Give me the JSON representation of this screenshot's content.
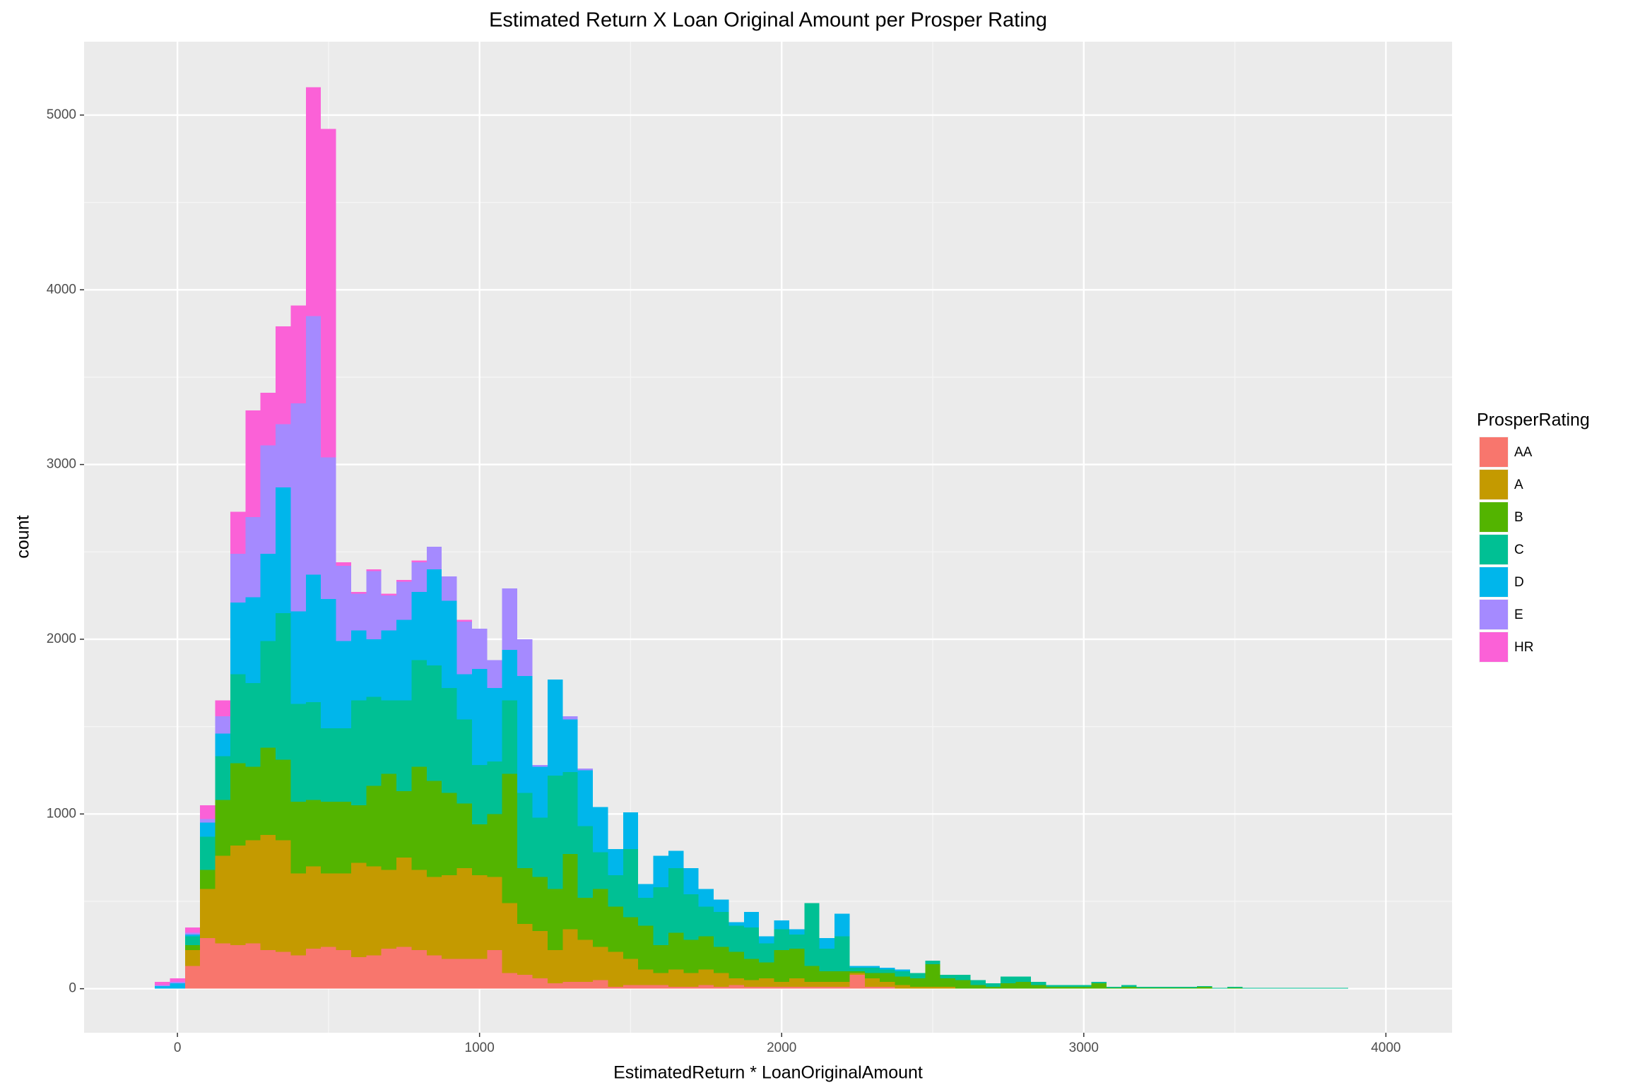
{
  "chart_data": {
    "type": "histogram",
    "title": "Estimated Return X Loan Original Amount per Prosper Rating",
    "x_label": "EstimatedReturn * LoanOriginalAmount",
    "y_label": "count",
    "legend_title": "ProsperRating",
    "legend": "right",
    "grid": true,
    "stacked": true,
    "bins": [
      -75,
      -25,
      25,
      75,
      125,
      175,
      225,
      275,
      325,
      375,
      425,
      475,
      525,
      575,
      625,
      675,
      725,
      775,
      825,
      875,
      925,
      975,
      1025,
      1075,
      1125,
      1175,
      1225,
      1275,
      1325,
      1375,
      1425,
      1475,
      1525,
      1575,
      1625,
      1675,
      1725,
      1775,
      1825,
      1875,
      1925,
      1975,
      2025,
      2075,
      2125,
      2175,
      2225,
      2275,
      2325,
      2375,
      2425,
      2475,
      2525,
      2575,
      2625,
      2675,
      2725,
      2775,
      2825,
      2875,
      2925,
      2975,
      3025,
      3075,
      3125,
      3175,
      3225,
      3275,
      3325,
      3375,
      3425,
      3475,
      3525,
      3575,
      3625,
      3675,
      3725,
      3775,
      3825,
      3875
    ],
    "series": [
      {
        "name": "AA",
        "color": "#F8766D",
        "values": [
          0,
          0,
          130,
          290,
          260,
          250,
          260,
          220,
          210,
          190,
          230,
          240,
          220,
          180,
          190,
          230,
          240,
          220,
          190,
          170,
          170,
          170,
          220,
          90,
          80,
          60,
          30,
          40,
          40,
          50,
          10,
          20,
          20,
          20,
          10,
          10,
          20,
          10,
          20,
          10,
          10,
          10,
          10,
          10,
          10,
          10,
          80,
          10,
          10,
          0,
          0,
          0,
          0,
          0,
          0,
          0,
          0,
          0,
          0,
          0,
          0,
          0,
          0,
          0,
          0,
          0,
          0,
          0,
          0,
          0,
          0,
          0,
          0,
          0,
          0,
          0,
          0,
          0,
          0
        ]
      },
      {
        "name": "A",
        "color": "#C49A00",
        "values": [
          0,
          0,
          90,
          280,
          500,
          570,
          590,
          660,
          640,
          470,
          470,
          420,
          440,
          540,
          510,
          450,
          510,
          460,
          450,
          480,
          520,
          480,
          420,
          400,
          290,
          270,
          190,
          300,
          240,
          190,
          200,
          150,
          90,
          70,
          100,
          80,
          90,
          80,
          40,
          40,
          50,
          30,
          50,
          30,
          30,
          30,
          10,
          50,
          30,
          20,
          10,
          10,
          10,
          0,
          0,
          0,
          0,
          0,
          0,
          0,
          0,
          0,
          0,
          0,
          0,
          0,
          0,
          0,
          0,
          0,
          0,
          0,
          0,
          0,
          0,
          0,
          0,
          0,
          0
        ]
      },
      {
        "name": "B",
        "color": "#53B400",
        "values": [
          0,
          0,
          30,
          110,
          320,
          470,
          420,
          500,
          460,
          410,
          380,
          410,
          410,
          330,
          460,
          550,
          380,
          590,
          550,
          470,
          370,
          290,
          360,
          740,
          320,
          310,
          350,
          430,
          240,
          330,
          260,
          240,
          250,
          160,
          210,
          190,
          190,
          150,
          150,
          120,
          90,
          180,
          170,
          90,
          60,
          60,
          10,
          30,
          50,
          50,
          50,
          130,
          50,
          50,
          20,
          10,
          30,
          40,
          20,
          10,
          10,
          10,
          30,
          5,
          10,
          5,
          5,
          5,
          5,
          10,
          0,
          5,
          0,
          0,
          0,
          0,
          0,
          0,
          0
        ]
      },
      {
        "name": "C",
        "color": "#00C094",
        "values": [
          0,
          0,
          50,
          190,
          250,
          510,
          480,
          610,
          840,
          560,
          560,
          420,
          420,
          600,
          510,
          420,
          520,
          610,
          660,
          600,
          480,
          340,
          300,
          420,
          430,
          340,
          650,
          470,
          410,
          210,
          180,
          390,
          160,
          330,
          370,
          260,
          170,
          200,
          150,
          180,
          110,
          120,
          80,
          360,
          130,
          200,
          20,
          30,
          20,
          30,
          30,
          20,
          20,
          30,
          30,
          20,
          40,
          30,
          20,
          10,
          10,
          10,
          10,
          5,
          10,
          5,
          5,
          5,
          5,
          5,
          5,
          5,
          5,
          5,
          5,
          5,
          5,
          5,
          5
        ]
      },
      {
        "name": "D",
        "color": "#00B6EB",
        "values": [
          15,
          30,
          10,
          80,
          130,
          410,
          490,
          500,
          720,
          530,
          730,
          740,
          500,
          400,
          330,
          400,
          460,
          390,
          550,
          500,
          260,
          550,
          420,
          290,
          670,
          290,
          550,
          300,
          320,
          260,
          150,
          210,
          80,
          180,
          100,
          150,
          100,
          70,
          20,
          90,
          40,
          50,
          30,
          0,
          60,
          130,
          10,
          10,
          10,
          10,
          0,
          0,
          0,
          0,
          0,
          0,
          0,
          0,
          0,
          0,
          0,
          0,
          0,
          0,
          0,
          0,
          0,
          0,
          0,
          0,
          0,
          0,
          0,
          0,
          0,
          0,
          0,
          0,
          0
        ]
      },
      {
        "name": "E",
        "color": "#A58AFF",
        "values": [
          5,
          10,
          10,
          20,
          100,
          280,
          460,
          620,
          360,
          1190,
          1480,
          810,
          430,
          210,
          390,
          200,
          220,
          170,
          130,
          140,
          300,
          230,
          160,
          350,
          210,
          10,
          0,
          20,
          10,
          0,
          0,
          0,
          0,
          0,
          0,
          0,
          0,
          0,
          0,
          0,
          0,
          0,
          0,
          0,
          0,
          0,
          0,
          0,
          0,
          0,
          0,
          0,
          0,
          0,
          0,
          0,
          0,
          0,
          0,
          0,
          0,
          0,
          0,
          0,
          0,
          0,
          0,
          0,
          0,
          0,
          0,
          0,
          0,
          0,
          0,
          0,
          0,
          0,
          0
        ]
      },
      {
        "name": "HR",
        "color": "#FB61D7",
        "values": [
          20,
          20,
          30,
          80,
          90,
          240,
          610,
          300,
          560,
          560,
          1310,
          1880,
          20,
          10,
          10,
          10,
          10,
          10,
          0,
          0,
          10,
          0,
          0,
          0,
          0,
          0,
          0,
          0,
          0,
          0,
          0,
          0,
          0,
          0,
          0,
          0,
          0,
          0,
          0,
          0,
          0,
          0,
          0,
          0,
          0,
          0,
          0,
          0,
          0,
          0,
          0,
          0,
          0,
          0,
          0,
          0,
          0,
          0,
          0,
          0,
          0,
          0,
          0,
          0,
          0,
          0,
          0,
          0,
          0,
          0,
          0,
          0,
          0,
          0,
          0,
          0,
          0,
          0,
          0
        ]
      }
    ],
    "xlim": [
      -309,
      4219
    ],
    "ylim": [
      -252,
      5420
    ],
    "xticks": [
      0,
      1000,
      2000,
      3000,
      4000
    ],
    "yticks": [
      0,
      1000,
      2000,
      3000,
      4000,
      5000
    ]
  }
}
